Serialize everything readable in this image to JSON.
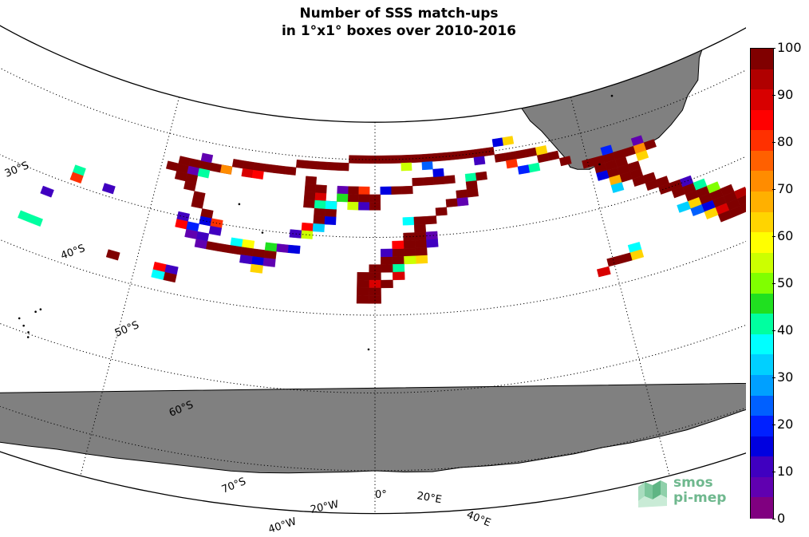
{
  "title": {
    "line1": "Number of SSS match-ups",
    "line2": "in 1°x1° boxes over 2010-2016"
  },
  "lat_labels": [
    "30°S",
    "40°S",
    "50°S",
    "60°S",
    "70°S"
  ],
  "lon_labels": [
    "40°W",
    "20°W",
    "0°",
    "20°E",
    "40°E"
  ],
  "colorbar": {
    "ticks": [
      "100",
      "90",
      "80",
      "70",
      "60",
      "50",
      "40",
      "30",
      "20",
      "10",
      "0"
    ],
    "colors": [
      "#800000",
      "#b00000",
      "#d80000",
      "#ff0000",
      "#ff3000",
      "#ff6000",
      "#ff8c00",
      "#ffb000",
      "#ffd400",
      "#ffff00",
      "#ccff00",
      "#80ff00",
      "#20e020",
      "#00ffa0",
      "#00ffff",
      "#00d0ff",
      "#00a0ff",
      "#0060ff",
      "#0020ff",
      "#0000e0",
      "#4000c0",
      "#6000b0",
      "#800080"
    ]
  },
  "logo": {
    "line1": "smos",
    "line2": "pi-mep"
  },
  "map_colors": {
    "land": "#808080",
    "background": "#ffffff",
    "grid": "#000000"
  },
  "matchup_boxes": [
    {
      "lon": -18,
      "lat": -33,
      "v": 100
    },
    {
      "lon": -17,
      "lat": -33,
      "v": 100
    },
    {
      "lon": -16,
      "lat": -33,
      "v": 100
    },
    {
      "lon": -15,
      "lat": -33,
      "v": 100
    },
    {
      "lon": -14,
      "lat": -33,
      "v": 100
    },
    {
      "lon": -13,
      "lat": -32,
      "v": 100
    },
    {
      "lon": -12,
      "lat": -32,
      "v": 100
    },
    {
      "lon": -11,
      "lat": -32,
      "v": 100
    },
    {
      "lon": -10,
      "lat": -32,
      "v": 100
    },
    {
      "lon": -9,
      "lat": -32,
      "v": 100
    },
    {
      "lon": -8,
      "lat": -32,
      "v": 100
    },
    {
      "lon": -7,
      "lat": -31,
      "v": 100
    },
    {
      "lon": -6,
      "lat": -31,
      "v": 100
    },
    {
      "lon": -5,
      "lat": -31,
      "v": 100
    },
    {
      "lon": -4,
      "lat": -31,
      "v": 100
    },
    {
      "lon": -3,
      "lat": -31,
      "v": 100
    },
    {
      "lon": -2,
      "lat": -30,
      "v": 100
    },
    {
      "lon": -1,
      "lat": -30,
      "v": 100
    },
    {
      "lon": 0,
      "lat": -30,
      "v": 100
    },
    {
      "lon": 1,
      "lat": -30,
      "v": 100
    },
    {
      "lon": 2,
      "lat": -30,
      "v": 100
    },
    {
      "lon": 3,
      "lat": -30,
      "v": 100
    },
    {
      "lon": 4,
      "lat": -30,
      "v": 100
    },
    {
      "lon": 5,
      "lat": -30,
      "v": 100
    },
    {
      "lon": 6,
      "lat": -30,
      "v": 100
    },
    {
      "lon": 7,
      "lat": -30,
      "v": 100
    },
    {
      "lon": 8,
      "lat": -30,
      "v": 100
    },
    {
      "lon": 9,
      "lat": -30,
      "v": 100
    },
    {
      "lon": 10,
      "lat": -30,
      "v": 100
    },
    {
      "lon": 11,
      "lat": -30,
      "v": 100
    },
    {
      "lon": 12,
      "lat": -31,
      "v": 100
    },
    {
      "lon": 13,
      "lat": -31,
      "v": 100
    },
    {
      "lon": 14,
      "lat": -31,
      "v": 100
    },
    {
      "lon": 15,
      "lat": -31,
      "v": 100
    },
    {
      "lon": 16,
      "lat": -32,
      "v": 100
    },
    {
      "lon": 17,
      "lat": -32,
      "v": 100
    },
    {
      "lon": 18,
      "lat": -33,
      "v": 100
    },
    {
      "lon": -16,
      "lat": -32,
      "v": 5
    },
    {
      "lon": -14,
      "lat": -33,
      "v": 75
    },
    {
      "lon": -12,
      "lat": -33,
      "v": 90
    },
    {
      "lon": -11,
      "lat": -33,
      "v": 85
    },
    {
      "lon": 3,
      "lat": -31,
      "v": 55
    },
    {
      "lon": 5,
      "lat": -31,
      "v": 25
    },
    {
      "lon": 10,
      "lat": -31,
      "v": 8
    },
    {
      "lon": 13,
      "lat": -32,
      "v": 80
    },
    {
      "lon": 15,
      "lat": -33,
      "v": 40
    },
    {
      "lon": 16,
      "lat": -31,
      "v": 62
    },
    {
      "lon": 12,
      "lat": -29,
      "v": 12
    },
    {
      "lon": 13,
      "lat": -29,
      "v": 62
    },
    {
      "lon": 14,
      "lat": -33,
      "v": 20
    },
    {
      "lon": -18,
      "lat": -34,
      "v": 100
    },
    {
      "lon": -19,
      "lat": -34,
      "v": 100
    },
    {
      "lon": -17,
      "lat": -34,
      "v": 5
    },
    {
      "lon": -16,
      "lat": -34,
      "v": 40
    },
    {
      "lon": -18,
      "lat": -35,
      "v": 100
    },
    {
      "lon": -17,
      "lat": -35,
      "v": 100
    },
    {
      "lon": -17,
      "lat": -36,
      "v": 100
    },
    {
      "lon": -16,
      "lat": -37,
      "v": 100
    },
    {
      "lon": -16,
      "lat": -38,
      "v": 100
    },
    {
      "lon": -15,
      "lat": -39,
      "v": 100
    },
    {
      "lon": -15,
      "lat": -40,
      "v": 15
    },
    {
      "lon": -14,
      "lat": -40,
      "v": 82
    },
    {
      "lon": -14,
      "lat": -41,
      "v": 10
    },
    {
      "lon": -17,
      "lat": -40,
      "v": 8
    },
    {
      "lon": -17,
      "lat": -41,
      "v": 85
    },
    {
      "lon": -16,
      "lat": -41,
      "v": 20
    },
    {
      "lon": -15,
      "lat": -42,
      "v": 8
    },
    {
      "lon": -12,
      "lat": -42,
      "v": 35
    },
    {
      "lon": -11,
      "lat": -42,
      "v": 60
    },
    {
      "lon": -16,
      "lat": -42,
      "v": 5
    },
    {
      "lon": -15,
      "lat": -43,
      "v": 5
    },
    {
      "lon": -14,
      "lat": -43,
      "v": 100
    },
    {
      "lon": -13,
      "lat": -43,
      "v": 100
    },
    {
      "lon": -12,
      "lat": -43,
      "v": 100
    },
    {
      "lon": -11,
      "lat": -43,
      "v": 100
    },
    {
      "lon": -10,
      "lat": -43,
      "v": 100
    },
    {
      "lon": -9,
      "lat": -43,
      "v": 100
    },
    {
      "lon": -10,
      "lat": -44,
      "v": 15
    },
    {
      "lon": -9,
      "lat": -44,
      "v": 5
    },
    {
      "lon": -11,
      "lat": -44,
      "v": 8
    },
    {
      "lon": -10,
      "lat": -45,
      "v": 65
    },
    {
      "lon": -9,
      "lat": -42,
      "v": 45
    },
    {
      "lon": -8,
      "lat": -42,
      "v": 5
    },
    {
      "lon": -7,
      "lat": -42,
      "v": 15
    },
    {
      "lon": -6,
      "lat": -33,
      "v": 100
    },
    {
      "lon": -6,
      "lat": -34,
      "v": 100
    },
    {
      "lon": -6,
      "lat": -35,
      "v": 100
    },
    {
      "lon": -6,
      "lat": -36,
      "v": 100
    },
    {
      "lon": -5,
      "lat": -37,
      "v": 100
    },
    {
      "lon": -5,
      "lat": -38,
      "v": 100
    },
    {
      "lon": -4,
      "lat": -36,
      "v": 100
    },
    {
      "lon": -5,
      "lat": -35,
      "v": 90
    },
    {
      "lon": -5,
      "lat": -34,
      "v": 100
    },
    {
      "lon": -4,
      "lat": -37,
      "v": 100
    },
    {
      "lon": -4,
      "lat": -38,
      "v": 12
    },
    {
      "lon": -6,
      "lat": -39,
      "v": 85
    },
    {
      "lon": -5,
      "lat": -39,
      "v": 30
    },
    {
      "lon": -6,
      "lat": -40,
      "v": 55
    },
    {
      "lon": -5,
      "lat": -36,
      "v": 40
    },
    {
      "lon": -7,
      "lat": -40,
      "v": 8
    },
    {
      "lon": -4,
      "lat": -36,
      "v": 35
    },
    {
      "lon": 7,
      "lat": -33,
      "v": 100
    },
    {
      "lon": 6,
      "lat": -33,
      "v": 100
    },
    {
      "lon": 5,
      "lat": -33,
      "v": 100
    },
    {
      "lon": 4,
      "lat": -33,
      "v": 100
    },
    {
      "lon": 3,
      "lat": -34,
      "v": 100
    },
    {
      "lon": 2,
      "lat": -34,
      "v": 100
    },
    {
      "lon": 1,
      "lat": -34,
      "v": 12
    },
    {
      "lon": 6,
      "lat": -32,
      "v": 15
    },
    {
      "lon": 9,
      "lat": -33,
      "v": 40
    },
    {
      "lon": 10,
      "lat": -33,
      "v": 100
    },
    {
      "lon": 9,
      "lat": -34,
      "v": 100
    },
    {
      "lon": 9,
      "lat": -35,
      "v": 100
    },
    {
      "lon": 8,
      "lat": -35,
      "v": 100
    },
    {
      "lon": 8,
      "lat": -36,
      "v": 5
    },
    {
      "lon": 7,
      "lat": -36,
      "v": 100
    },
    {
      "lon": 6,
      "lat": -37,
      "v": 100
    },
    {
      "lon": 5,
      "lat": -38,
      "v": 100
    },
    {
      "lon": 4,
      "lat": -39,
      "v": 100
    },
    {
      "lon": 4,
      "lat": -40,
      "v": 100
    },
    {
      "lon": 3,
      "lat": -40,
      "v": 100
    },
    {
      "lon": 4,
      "lat": -41,
      "v": 100
    },
    {
      "lon": 3,
      "lat": -41,
      "v": 100
    },
    {
      "lon": 2,
      "lat": -42,
      "v": 100
    },
    {
      "lon": 1,
      "lat": -43,
      "v": 100
    },
    {
      "lon": 2,
      "lat": -43,
      "v": 100
    },
    {
      "lon": 3,
      "lat": -42,
      "v": 100
    },
    {
      "lon": 4,
      "lat": -42,
      "v": 100
    },
    {
      "lon": 3,
      "lat": -38,
      "v": 35
    },
    {
      "lon": 4,
      "lat": -38,
      "v": 100
    },
    {
      "lon": 5,
      "lat": -40,
      "v": 5
    },
    {
      "lon": 5,
      "lat": -41,
      "v": 8
    },
    {
      "lon": 4,
      "lat": -43,
      "v": 62
    },
    {
      "lon": 3,
      "lat": -43,
      "v": 55
    },
    {
      "lon": 2,
      "lat": -44,
      "v": 40
    },
    {
      "lon": 1,
      "lat": -44,
      "v": 100
    },
    {
      "lon": 2,
      "lat": -41,
      "v": 88
    },
    {
      "lon": 1,
      "lat": -42,
      "v": 10
    },
    {
      "lon": 0,
      "lat": -44,
      "v": 100
    },
    {
      "lon": 0,
      "lat": -45,
      "v": 100
    },
    {
      "lon": -1,
      "lat": -45,
      "v": 100
    },
    {
      "lon": 0,
      "lat": -46,
      "v": 90
    },
    {
      "lon": -1,
      "lat": -46,
      "v": 100
    },
    {
      "lon": 0,
      "lat": -47,
      "v": 100
    },
    {
      "lon": -1,
      "lat": -47,
      "v": 100
    },
    {
      "lon": 0,
      "lat": -48,
      "v": 100
    },
    {
      "lon": -1,
      "lat": -48,
      "v": 100
    },
    {
      "lon": 1,
      "lat": -46,
      "v": 100
    },
    {
      "lon": 2,
      "lat": -45,
      "v": 90
    },
    {
      "lon": -2,
      "lat": -34,
      "v": 100
    },
    {
      "lon": -2,
      "lat": -35,
      "v": 100
    },
    {
      "lon": -1,
      "lat": -34,
      "v": 80
    },
    {
      "lon": -3,
      "lat": -34,
      "v": 5
    },
    {
      "lon": -3,
      "lat": -35,
      "v": 45
    },
    {
      "lon": -1,
      "lat": -35,
      "v": 100
    },
    {
      "lon": -2,
      "lat": -36,
      "v": 55
    },
    {
      "lon": -1,
      "lat": -36,
      "v": 8
    },
    {
      "lon": 0,
      "lat": -35,
      "v": 100
    },
    {
      "lon": 0,
      "lat": -36,
      "v": 100
    },
    {
      "lon": 20,
      "lat": -34,
      "v": 100
    },
    {
      "lon": 21,
      "lat": -34,
      "v": 100
    },
    {
      "lon": 22,
      "lat": -34,
      "v": 100
    },
    {
      "lon": 21,
      "lat": -35,
      "v": 100
    },
    {
      "lon": 22,
      "lat": -35,
      "v": 100
    },
    {
      "lon": 23,
      "lat": -35,
      "v": 100
    },
    {
      "lon": 22,
      "lat": -36,
      "v": 100
    },
    {
      "lon": 23,
      "lat": -36,
      "v": 100
    },
    {
      "lon": 24,
      "lat": -36,
      "v": 100
    },
    {
      "lon": 23,
      "lat": -37,
      "v": 100
    },
    {
      "lon": 24,
      "lat": -37,
      "v": 100
    },
    {
      "lon": 24,
      "lat": -38,
      "v": 100
    },
    {
      "lon": 25,
      "lat": -38,
      "v": 100
    },
    {
      "lon": 25,
      "lat": -39,
      "v": 100
    },
    {
      "lon": 26,
      "lat": -39,
      "v": 100
    },
    {
      "lon": 26,
      "lat": -40,
      "v": 100
    },
    {
      "lon": 27,
      "lat": -40,
      "v": 100
    },
    {
      "lon": 27,
      "lat": -41,
      "v": 100
    },
    {
      "lon": 28,
      "lat": -41,
      "v": 100
    },
    {
      "lon": 28,
      "lat": -42,
      "v": 100
    },
    {
      "lon": 29,
      "lat": -42,
      "v": 100
    },
    {
      "lon": 29,
      "lat": -43,
      "v": 100
    },
    {
      "lon": 30,
      "lat": -43,
      "v": 100
    },
    {
      "lon": 30,
      "lat": -44,
      "v": 100
    },
    {
      "lon": 31,
      "lat": -44,
      "v": 100
    },
    {
      "lon": 31,
      "lat": -45,
      "v": 100
    },
    {
      "lon": 32,
      "lat": -45,
      "v": 100
    },
    {
      "lon": 32,
      "lat": -46,
      "v": 100
    },
    {
      "lon": 33,
      "lat": -46,
      "v": 100
    },
    {
      "lon": 34,
      "lat": -46,
      "v": 100
    },
    {
      "lon": 23,
      "lat": -34,
      "v": 100
    },
    {
      "lon": 24,
      "lat": -34,
      "v": 100
    },
    {
      "lon": 22,
      "lat": -33,
      "v": 20
    },
    {
      "lon": 25,
      "lat": -35,
      "v": 62
    },
    {
      "lon": 21,
      "lat": -36,
      "v": 15
    },
    {
      "lon": 22,
      "lat": -37,
      "v": 70
    },
    {
      "lon": 25,
      "lat": -33,
      "v": 5
    },
    {
      "lon": 26,
      "lat": -34,
      "v": 100
    },
    {
      "lon": 25,
      "lat": -34,
      "v": 75
    },
    {
      "lon": 22,
      "lat": -38,
      "v": 30
    },
    {
      "lon": 28,
      "lat": -40,
      "v": 8
    },
    {
      "lon": 29,
      "lat": -41,
      "v": 40
    },
    {
      "lon": 28,
      "lat": -43,
      "v": 62
    },
    {
      "lon": 27,
      "lat": -43,
      "v": 30
    },
    {
      "lon": 30,
      "lat": -42,
      "v": 50
    },
    {
      "lon": 31,
      "lat": -43,
      "v": 100
    },
    {
      "lon": 32,
      "lat": -44,
      "v": 95
    },
    {
      "lon": 33,
      "lat": -45,
      "v": 8
    },
    {
      "lon": 29,
      "lat": -44,
      "v": 15
    },
    {
      "lon": 30,
      "lat": -45,
      "v": 90
    },
    {
      "lon": 29,
      "lat": -45,
      "v": 62
    },
    {
      "lon": 28,
      "lat": -44,
      "v": 25
    },
    {
      "lon": 31,
      "lat": -46,
      "v": 100
    },
    {
      "lon": 30,
      "lat": -46,
      "v": 100
    },
    {
      "lon": 22,
      "lat": -46,
      "v": 35
    },
    {
      "lon": 22,
      "lat": -47,
      "v": 62
    },
    {
      "lon": 21,
      "lat": -47,
      "v": 100
    },
    {
      "lon": 20,
      "lat": -47,
      "v": 100
    },
    {
      "lon": 19,
      "lat": -48,
      "v": 92
    },
    {
      "lon": 35,
      "lat": -46,
      "v": 100
    },
    {
      "lon": 36,
      "lat": -46,
      "v": 100
    },
    {
      "lon": 35,
      "lat": -47,
      "v": 100
    },
    {
      "lon": 34,
      "lat": -47,
      "v": 100
    },
    {
      "lon": 34,
      "lat": -48,
      "v": 55
    },
    {
      "lon": 33,
      "lat": -48,
      "v": 100
    },
    {
      "lon": 35,
      "lat": -48,
      "v": 100
    },
    {
      "lon": 36,
      "lat": -47,
      "v": 100
    },
    {
      "lon": -27,
      "lat": -38,
      "v": 40
    },
    {
      "lon": -27,
      "lat": -39,
      "v": 80
    },
    {
      "lon": -24,
      "lat": -39,
      "v": 8
    },
    {
      "lon": -29,
      "lat": -42,
      "v": 10
    },
    {
      "lon": -36,
      "lat": -43,
      "v": 100
    },
    {
      "lon": -35,
      "lat": -44,
      "v": 100
    },
    {
      "lon": -34,
      "lat": -44,
      "v": 60
    },
    {
      "lon": -30,
      "lat": -46,
      "v": 40
    },
    {
      "lon": -29,
      "lat": -46,
      "v": 40
    },
    {
      "lon": -22,
      "lat": -47,
      "v": 100
    },
    {
      "lon": -18,
      "lat": -47,
      "v": 85
    },
    {
      "lon": -17,
      "lat": -47,
      "v": 8
    },
    {
      "lon": -17,
      "lat": -48,
      "v": 100
    },
    {
      "lon": -18,
      "lat": -48,
      "v": 35
    }
  ]
}
